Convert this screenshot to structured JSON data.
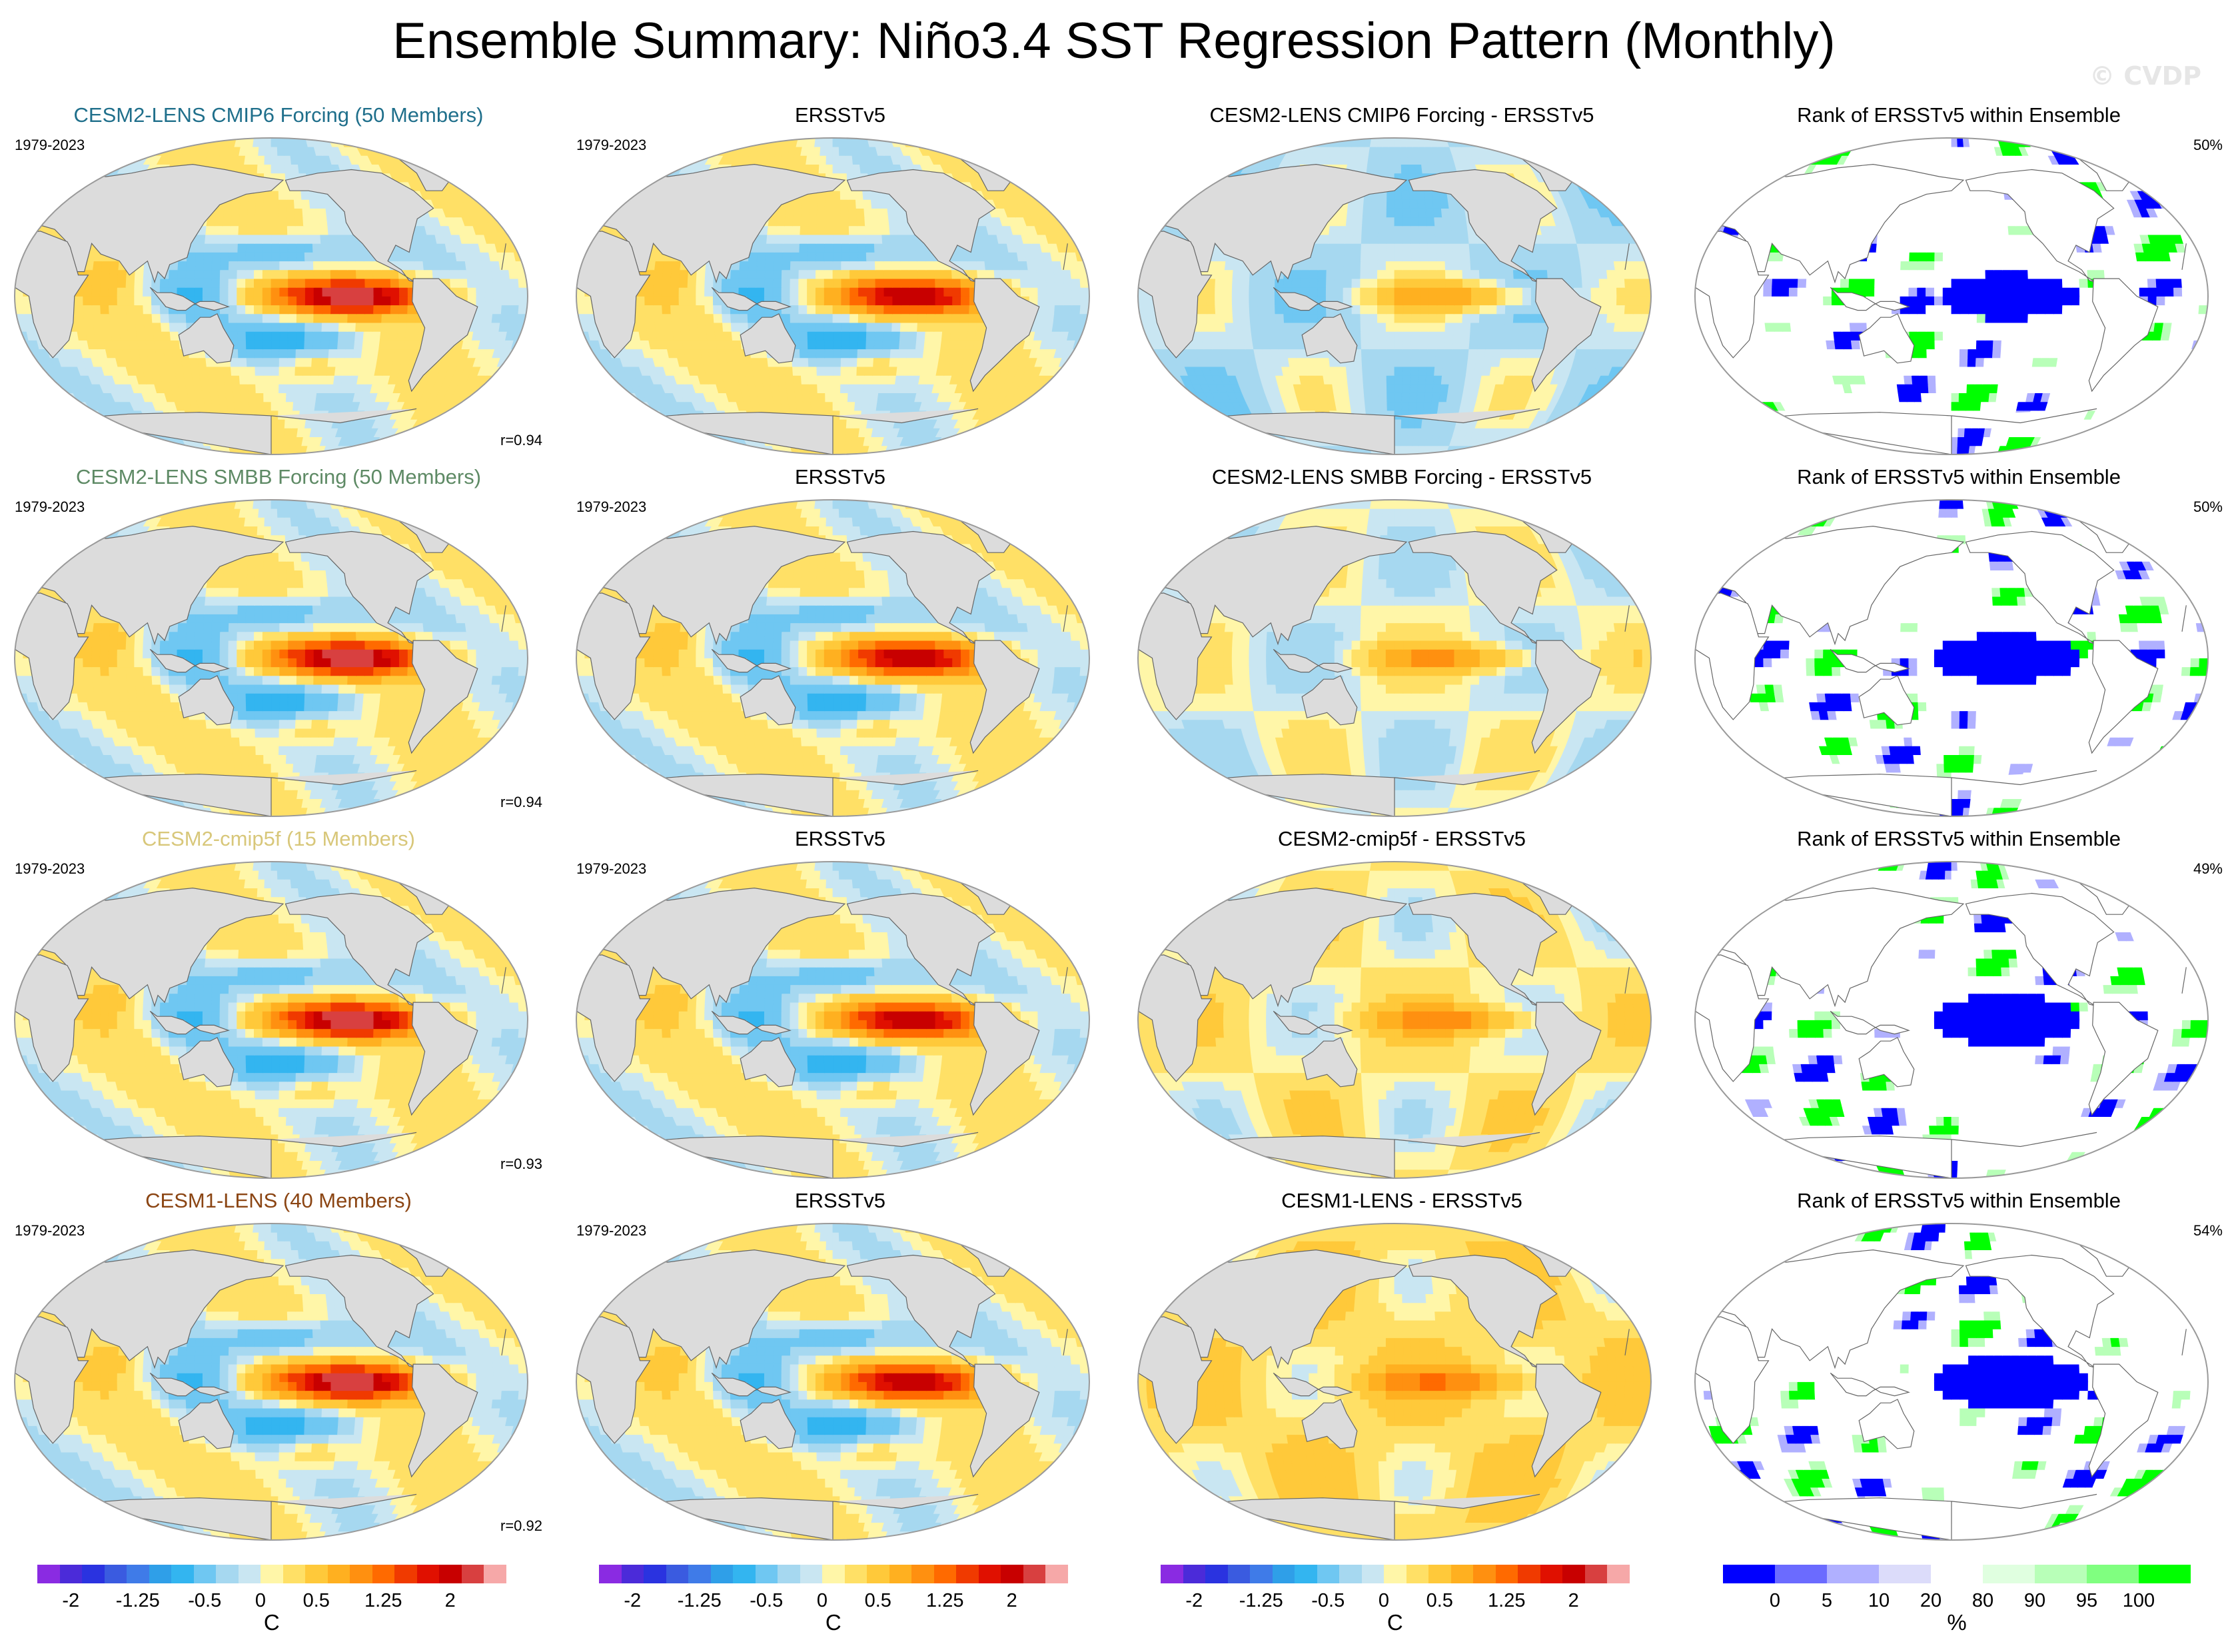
{
  "title": "Ensemble Summary: Niño3.4 SST Regression Pattern (Monthly)",
  "watermark": "© CVDP",
  "rows": [
    {
      "model": {
        "title": "CESM2-LENS CMIP6 Forcing (50 Members)",
        "title_color": "#1f6f8b",
        "period": "1979-2023",
        "correlation": "r=0.94"
      },
      "obs": {
        "title": "ERSSTv5",
        "period": "1979-2023"
      },
      "diff": {
        "title": "CESM2-LENS CMIP6 Forcing - ERSSTv5"
      },
      "rank": {
        "title": "Rank of ERSSTv5 within Ensemble",
        "percent": "50%"
      }
    },
    {
      "model": {
        "title": "CESM2-LENS SMBB Forcing (50 Members)",
        "title_color": "#5e8a65",
        "period": "1979-2023",
        "correlation": "r=0.94"
      },
      "obs": {
        "title": "ERSSTv5",
        "period": "1979-2023"
      },
      "diff": {
        "title": "CESM2-LENS SMBB Forcing - ERSSTv5"
      },
      "rank": {
        "title": "Rank of ERSSTv5 within Ensemble",
        "percent": "50%"
      }
    },
    {
      "model": {
        "title": "CESM2-cmip5f (15 Members)",
        "title_color": "#d8c77a",
        "period": "1979-2023",
        "correlation": "r=0.93"
      },
      "obs": {
        "title": "ERSSTv5",
        "period": "1979-2023"
      },
      "diff": {
        "title": "CESM2-cmip5f - ERSSTv5"
      },
      "rank": {
        "title": "Rank of ERSSTv5 within Ensemble",
        "percent": "49%"
      }
    },
    {
      "model": {
        "title": "CESM1-LENS (40 Members)",
        "title_color": "#8b4513",
        "period": "1979-2023",
        "correlation": "r=0.92"
      },
      "obs": {
        "title": "ERSSTv5",
        "period": "1979-2023"
      },
      "diff": {
        "title": "CESM1-LENS - ERSSTv5"
      },
      "rank": {
        "title": "Rank of ERSSTv5 within Ensemble",
        "percent": "54%"
      }
    }
  ],
  "colorbars": {
    "sst": {
      "unit": "C",
      "tick_labels": [
        "-2",
        "-1.25",
        "-0.5",
        "0",
        "0.5",
        "1.25",
        "2"
      ],
      "colors": [
        "#8a2be2",
        "#4b2bd9",
        "#2a33e0",
        "#3a5be0",
        "#3f7be8",
        "#2f9fe8",
        "#33b5f0",
        "#6fc7f2",
        "#a6d8f0",
        "#c9e6f2",
        "#fff6a8",
        "#ffe066",
        "#ffc93a",
        "#ffb020",
        "#ff9010",
        "#ff6a00",
        "#f03a00",
        "#e01000",
        "#c80000",
        "#d84040",
        "#f6a8a8"
      ]
    },
    "rank": {
      "unit": "%",
      "tick_labels": [
        "0",
        "5",
        "10",
        "20",
        "80",
        "90",
        "95",
        "100"
      ],
      "colors": [
        "#0000ff",
        "#6b6bff",
        "#b0b0ff",
        "#dcdcfa",
        "#ffffff",
        "#e0ffe0",
        "#b8ffb8",
        "#80ff80",
        "#00ff00"
      ]
    }
  }
}
